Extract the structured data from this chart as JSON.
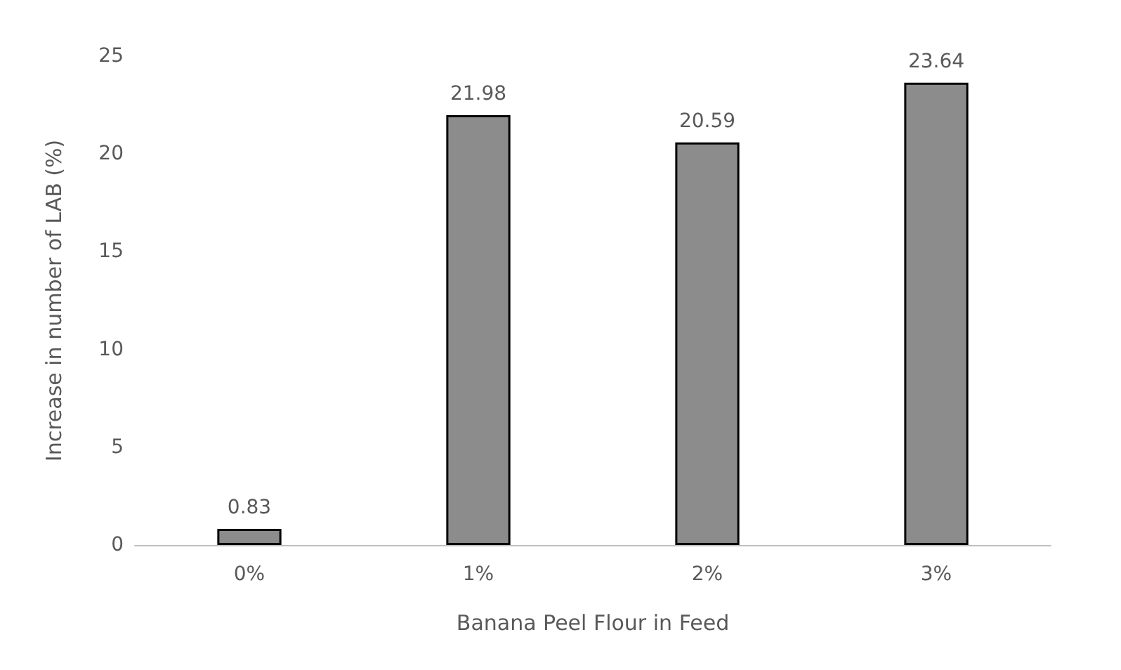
{
  "chart_data": {
    "type": "bar",
    "xlabel": "Banana Peel Flour in Feed",
    "ylabel": "Increase in number of LAB (%)",
    "categories": [
      "0%",
      "1%",
      "2%",
      "3%"
    ],
    "values": [
      0.83,
      21.98,
      20.59,
      23.64
    ],
    "color": "#8c8c8c",
    "ylim": [
      0,
      25
    ],
    "yticks": [
      0,
      5,
      10,
      15,
      20,
      25
    ],
    "grid": false,
    "data_labels": true
  }
}
